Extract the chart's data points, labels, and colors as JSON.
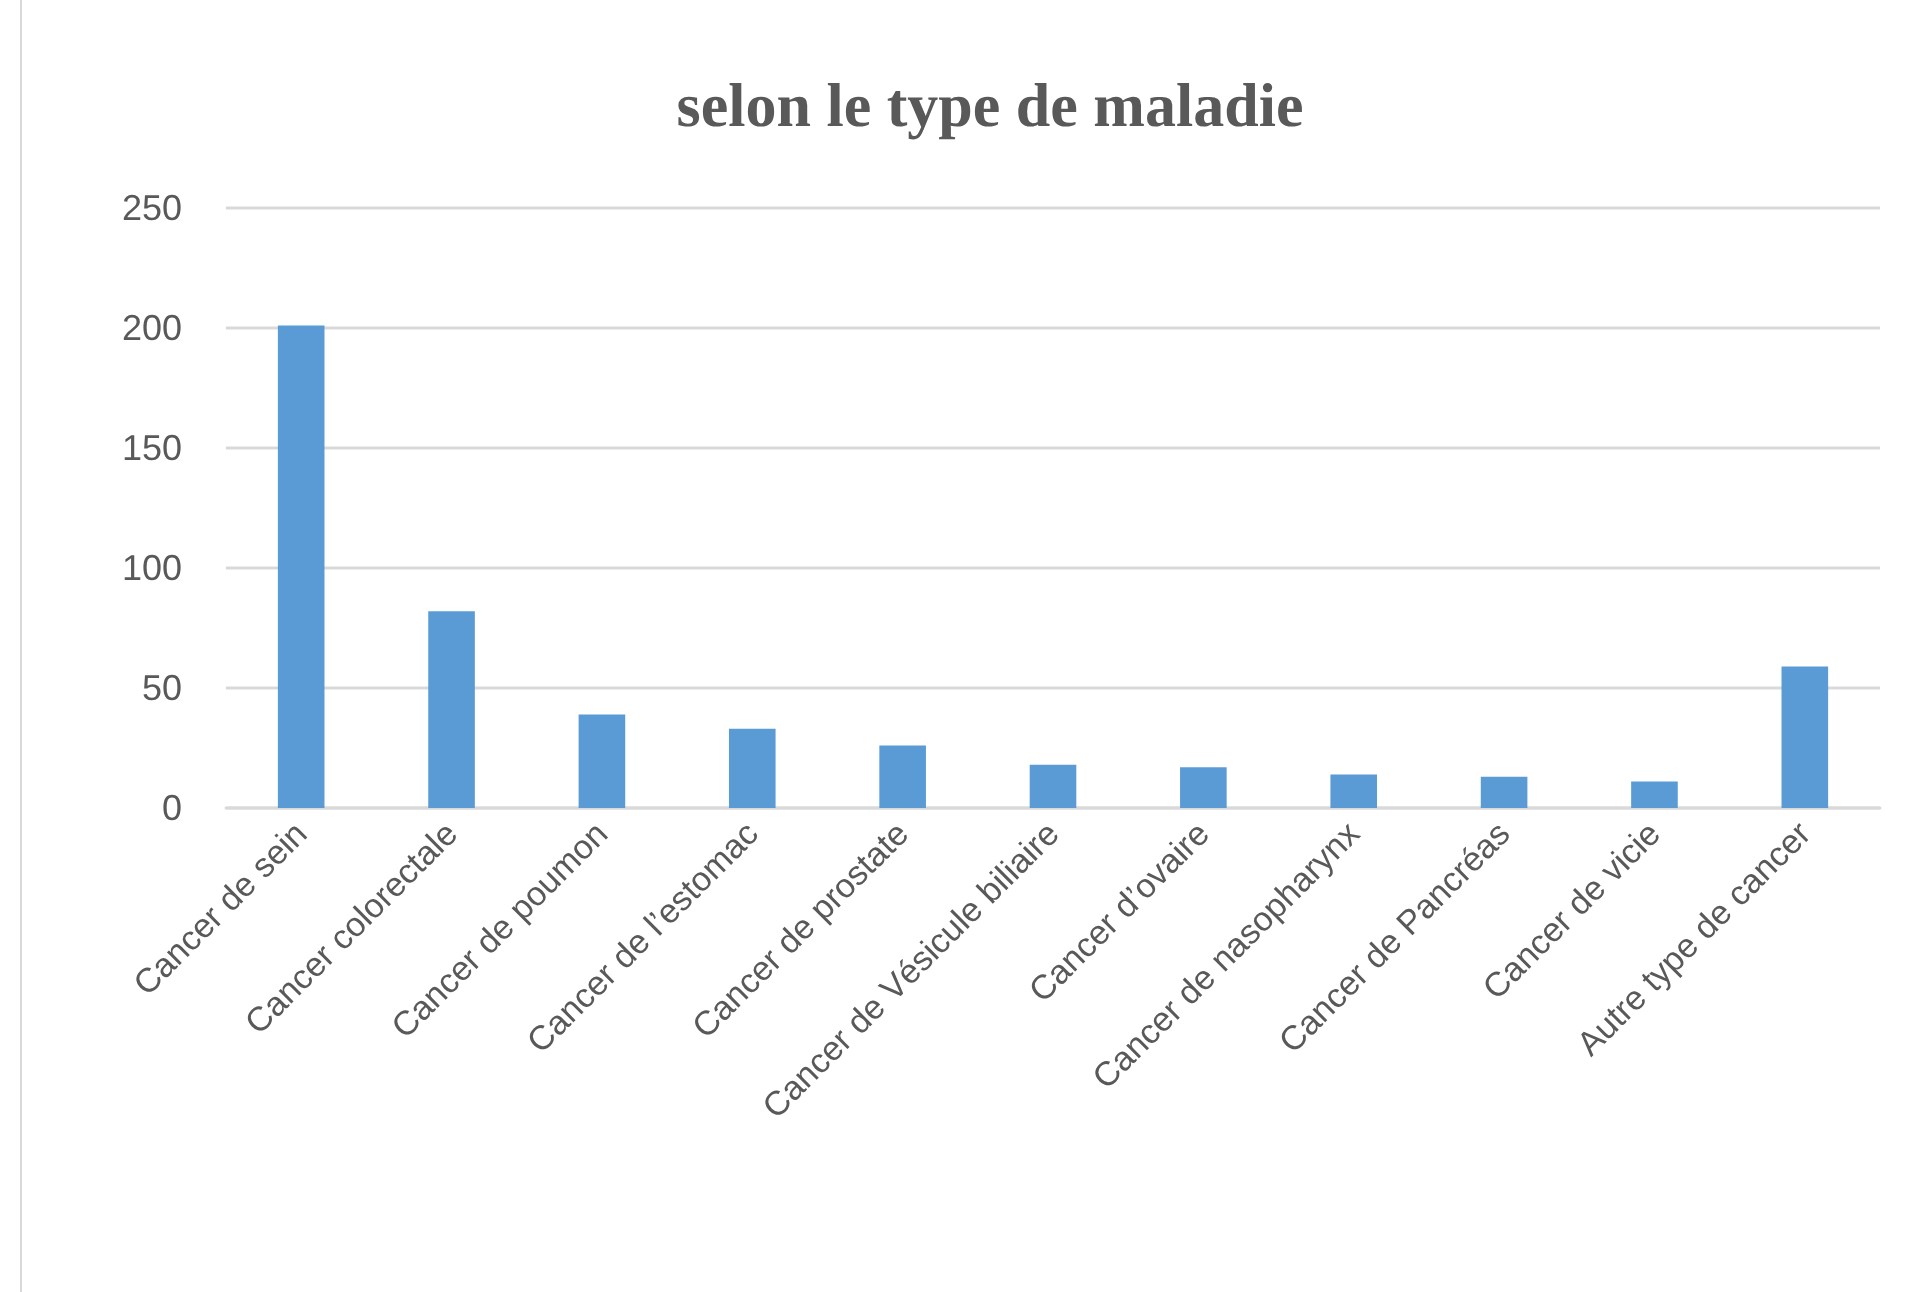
{
  "chart_data": {
    "type": "bar",
    "title": "selon le type de maladie",
    "categories": [
      "Cancer de sein",
      "Cancer colorectale",
      "Cancer de poumon",
      "Cancer de l’estomac",
      "Cancer de prostate",
      "Cancer de Vésicule biliaire",
      "Cancer d’ovaire",
      "Cancer de nasopharynx",
      "Cancer de Pancréas",
      "Cancer de vicie",
      "Autre type de cancer"
    ],
    "values": [
      201,
      82,
      39,
      33,
      26,
      18,
      17,
      14,
      13,
      11,
      59
    ],
    "color": "#5b9bd5",
    "ylim": [
      0,
      250
    ],
    "yticks": [
      0,
      50,
      100,
      150,
      200,
      250
    ],
    "grid": "y"
  }
}
